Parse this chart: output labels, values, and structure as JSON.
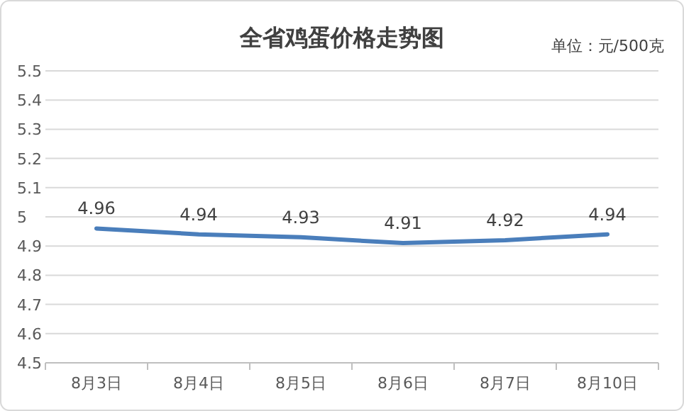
{
  "chart_data": {
    "type": "line",
    "title": "全省鸡蛋价格走势图",
    "annotations": [
      "单位：元/500克"
    ],
    "categories": [
      "8月3日",
      "8月4日",
      "8月5日",
      "8月6日",
      "8月7日",
      "8月10日"
    ],
    "series": [
      {
        "color": "#4a7ebb",
        "values": [
          4.96,
          4.94,
          4.93,
          4.91,
          4.92,
          4.94
        ]
      }
    ],
    "ylim": [
      4.5,
      5.5
    ],
    "yticks": [
      4.5,
      4.6,
      4.7,
      4.8,
      4.9,
      5,
      5.1,
      5.2,
      5.3,
      5.4,
      5.5
    ],
    "grid": "y",
    "marker": "none",
    "line_style": "solid",
    "data_labels": true
  }
}
